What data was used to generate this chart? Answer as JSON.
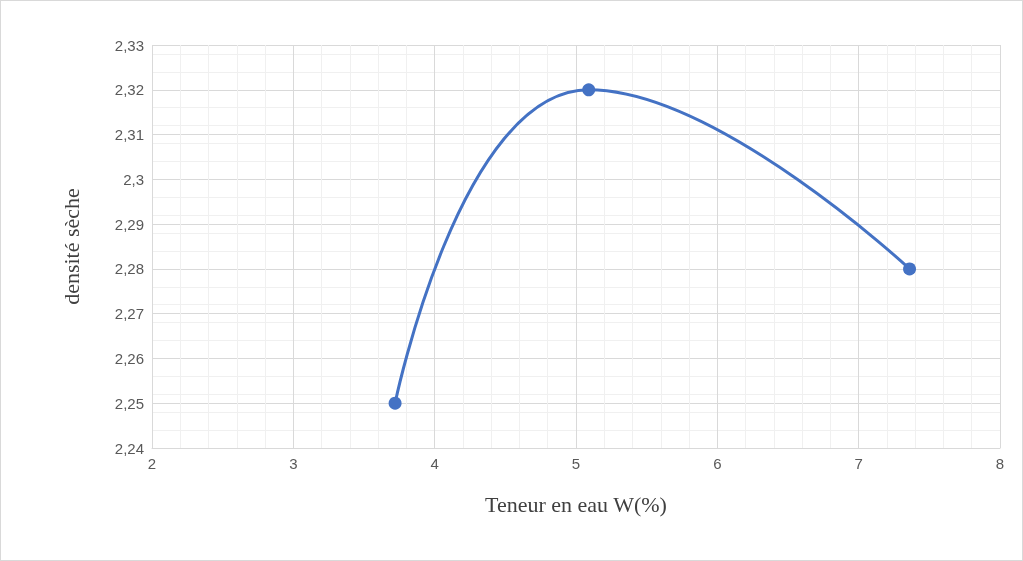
{
  "chart_data": {
    "type": "line",
    "xlabel": "Teneur en eau W(%)",
    "ylabel": "densité sèche",
    "x": [
      3.72,
      5.09,
      7.36
    ],
    "series": [
      {
        "color": "#4472c4",
        "values": [
          2.25,
          2.32,
          2.28
        ]
      }
    ],
    "xlim": [
      2,
      8
    ],
    "xticks": [
      2,
      3,
      4,
      5,
      6,
      7,
      8
    ],
    "ylim": [
      2.24,
      2.33
    ],
    "yticks": [
      {
        "value": 2.24,
        "label": "2,24"
      },
      {
        "value": 2.25,
        "label": "2,25"
      },
      {
        "value": 2.26,
        "label": "2,26"
      },
      {
        "value": 2.27,
        "label": "2,27"
      },
      {
        "value": 2.28,
        "label": "2,28"
      },
      {
        "value": 2.29,
        "label": "2,29"
      },
      {
        "value": 2.3,
        "label": "2,3"
      },
      {
        "value": 2.31,
        "label": "2,31"
      },
      {
        "value": 2.32,
        "label": "2,32"
      },
      {
        "value": 2.33,
        "label": "2,33"
      }
    ],
    "grid": true,
    "marker": "circle",
    "line_style": "solid"
  }
}
